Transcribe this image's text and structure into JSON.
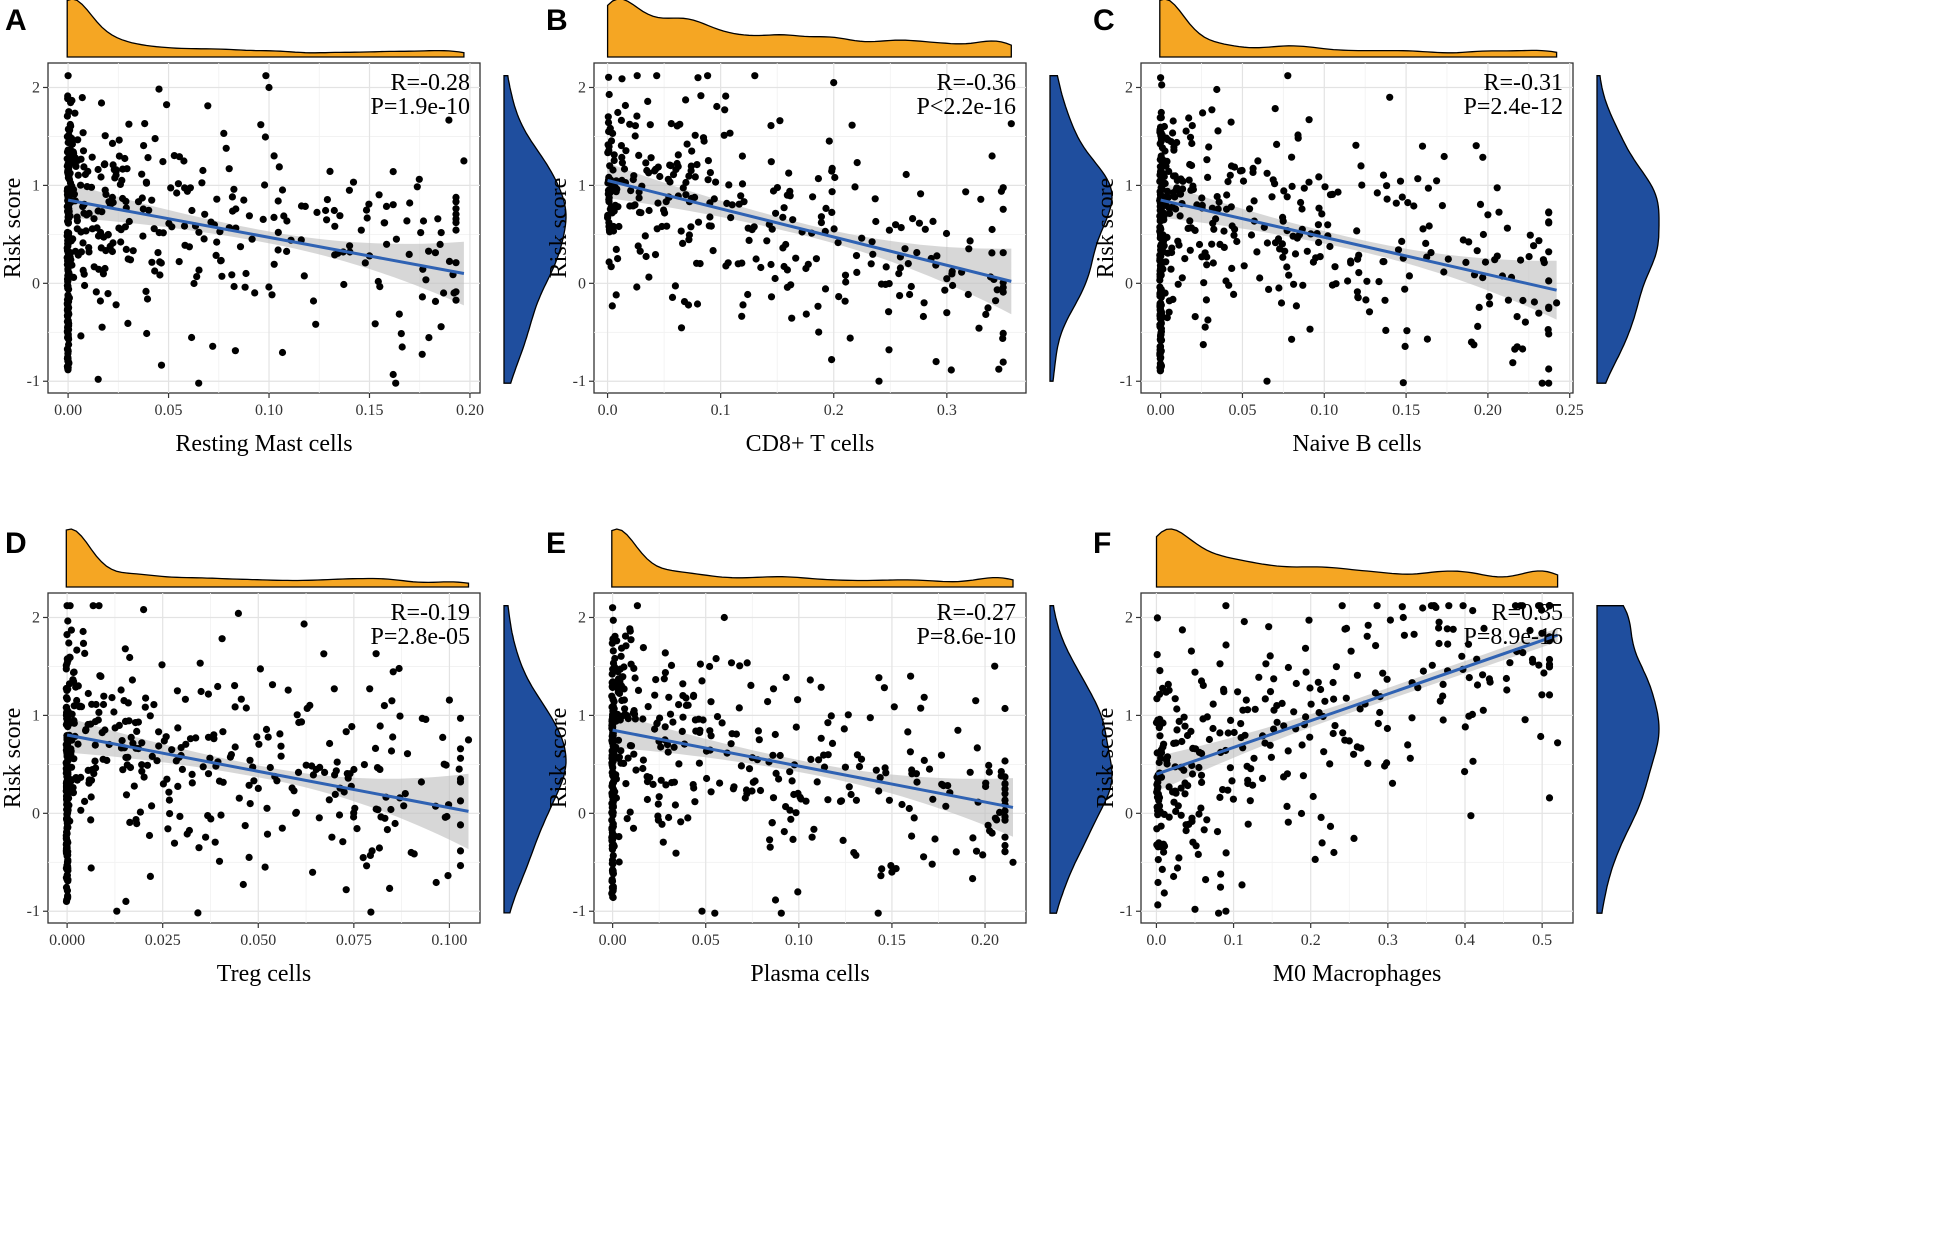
{
  "figure": {
    "background": "#ffffff",
    "top_density_color": "#f5a623",
    "right_density_color": "#1f4e9e",
    "fit_line_color": "#2f62b3",
    "band_color": "#bdbdbd"
  },
  "chart_data": [
    {
      "panel": "A",
      "type": "scatter",
      "xlabel": "Resting Mast cells",
      "ylabel": "Risk score",
      "xlim": [
        -0.01,
        0.205
      ],
      "ylim": [
        -1.12,
        2.25
      ],
      "xticks": [
        0.0,
        0.05,
        0.1,
        0.15,
        0.2
      ],
      "xtick_labels": [
        "0.00",
        "0.05",
        "0.10",
        "0.15",
        "0.20"
      ],
      "yticks": [
        -1,
        0,
        1,
        2
      ],
      "ytick_labels": [
        "-1",
        "0",
        "1",
        "2"
      ],
      "stats": {
        "r": "R=-0.28",
        "p": "P=1.9e-10"
      },
      "fit": {
        "x0": 0.0,
        "y0": 0.85,
        "x1": 0.197,
        "y1": 0.1
      },
      "band": {
        "lower_end": -0.15,
        "upper_end": 0.38
      },
      "zero_cluster": 150,
      "seed": 101,
      "highlight_points": [
        [
          0.197,
          1.25
        ],
        [
          0.17,
          0.82
        ],
        [
          0.15,
          0.28
        ],
        [
          0.1,
          2.0
        ],
        [
          0.0,
          2.12
        ],
        [
          0.065,
          -1.02
        ],
        [
          0.015,
          -0.98
        ],
        [
          0.14,
          0.95
        ]
      ]
    },
    {
      "panel": "B",
      "type": "scatter",
      "xlabel": "CD8+ T cells",
      "ylabel": "Risk score",
      "xlim": [
        -0.012,
        0.37
      ],
      "ylim": [
        -1.12,
        2.25
      ],
      "xticks": [
        0.0,
        0.1,
        0.2,
        0.3
      ],
      "xtick_labels": [
        "0.0",
        "0.1",
        "0.2",
        "0.3"
      ],
      "yticks": [
        -1,
        0,
        1,
        2
      ],
      "ytick_labels": [
        "-1",
        "0",
        "1",
        "2"
      ],
      "stats": {
        "r": "R=-0.36",
        "p": "P<2.2e-16"
      },
      "fit": {
        "x0": 0.0,
        "y0": 1.05,
        "x1": 0.357,
        "y1": 0.02
      },
      "band": {
        "lower_end": -0.25,
        "upper_end": 0.3
      },
      "zero_cluster": 0,
      "seed": 202,
      "highlight_points": [
        [
          0.357,
          1.63
        ],
        [
          0.34,
          1.3
        ],
        [
          0.2,
          2.05
        ],
        [
          0.08,
          2.1
        ],
        [
          0.24,
          -1.0
        ],
        [
          0.3,
          -0.3
        ],
        [
          0.34,
          0.55
        ]
      ]
    },
    {
      "panel": "C",
      "type": "scatter",
      "xlabel": "Naive B cells",
      "ylabel": "Risk score",
      "xlim": [
        -0.012,
        0.252
      ],
      "ylim": [
        -1.12,
        2.25
      ],
      "xticks": [
        0.0,
        0.05,
        0.1,
        0.15,
        0.2,
        0.25
      ],
      "xtick_labels": [
        "0.00",
        "0.05",
        "0.10",
        "0.15",
        "0.20",
        "0.25"
      ],
      "yticks": [
        -1,
        0,
        1,
        2
      ],
      "ytick_labels": [
        "-1",
        "0",
        "1",
        "2"
      ],
      "stats": {
        "r": "R=-0.31",
        "p": "P=2.4e-12"
      },
      "fit": {
        "x0": 0.0,
        "y0": 0.85,
        "x1": 0.242,
        "y1": -0.07
      },
      "band": {
        "lower_end": -0.3,
        "upper_end": 0.18
      },
      "zero_cluster": 150,
      "seed": 303,
      "highlight_points": [
        [
          0.242,
          -0.2
        ],
        [
          0.2,
          0.7
        ],
        [
          0.19,
          -0.6
        ],
        [
          0.14,
          1.9
        ],
        [
          0.16,
          1.4
        ],
        [
          0.065,
          -1.0
        ],
        [
          0.0,
          2.1
        ]
      ]
    },
    {
      "panel": "D",
      "type": "scatter",
      "xlabel": "Treg cells",
      "ylabel": "Risk score",
      "xlim": [
        -0.005,
        0.108
      ],
      "ylim": [
        -1.12,
        2.25
      ],
      "xticks": [
        0.0,
        0.025,
        0.05,
        0.075,
        0.1
      ],
      "xtick_labels": [
        "0.000",
        "0.025",
        "0.050",
        "0.075",
        "0.100"
      ],
      "yticks": [
        -1,
        0,
        1,
        2
      ],
      "ytick_labels": [
        "-1",
        "0",
        "1",
        "2"
      ],
      "stats": {
        "r": "R=-0.19",
        "p": "P=2.8e-05"
      },
      "fit": {
        "x0": 0.0,
        "y0": 0.8,
        "x1": 0.105,
        "y1": 0.02
      },
      "band": {
        "lower_end": -0.3,
        "upper_end": 0.35
      },
      "zero_cluster": 160,
      "seed": 404,
      "highlight_points": [
        [
          0.105,
          0.75
        ],
        [
          0.09,
          -0.4
        ],
        [
          0.083,
          1.1
        ],
        [
          0.073,
          -0.78
        ],
        [
          0.02,
          2.08
        ],
        [
          0.013,
          -1.0
        ],
        [
          0.0,
          2.12
        ]
      ]
    },
    {
      "panel": "E",
      "type": "scatter",
      "xlabel": "Plasma cells",
      "ylabel": "Risk score",
      "xlim": [
        -0.01,
        0.222
      ],
      "ylim": [
        -1.12,
        2.25
      ],
      "xticks": [
        0.0,
        0.05,
        0.1,
        0.15,
        0.2
      ],
      "xtick_labels": [
        "0.00",
        "0.05",
        "0.10",
        "0.15",
        "0.20"
      ],
      "yticks": [
        -1,
        0,
        1,
        2
      ],
      "ytick_labels": [
        "-1",
        "0",
        "1",
        "2"
      ],
      "stats": {
        "r": "R=-0.27",
        "p": "P=8.6e-10"
      },
      "fit": {
        "x0": 0.0,
        "y0": 0.85,
        "x1": 0.215,
        "y1": 0.06
      },
      "band": {
        "lower_end": -0.18,
        "upper_end": 0.3
      },
      "zero_cluster": 120,
      "seed": 505,
      "highlight_points": [
        [
          0.215,
          -0.5
        ],
        [
          0.195,
          1.15
        ],
        [
          0.16,
          1.4
        ],
        [
          0.15,
          -0.6
        ],
        [
          0.06,
          2.0
        ],
        [
          0.0,
          2.1
        ],
        [
          0.048,
          -1.0
        ]
      ]
    },
    {
      "panel": "F",
      "type": "scatter",
      "xlabel": "M0 Macrophages",
      "ylabel": "Risk score",
      "xlim": [
        -0.02,
        0.54
      ],
      "ylim": [
        -1.12,
        2.25
      ],
      "xticks": [
        0.0,
        0.1,
        0.2,
        0.3,
        0.4,
        0.5
      ],
      "xtick_labels": [
        "0.0",
        "0.1",
        "0.2",
        "0.3",
        "0.4",
        "0.5"
      ],
      "yticks": [
        -1,
        0,
        1,
        2
      ],
      "ytick_labels": [
        "-1",
        "0",
        "1",
        "2"
      ],
      "stats": {
        "r": "R=0.35",
        "p": "P=8.9e-16"
      },
      "fit": {
        "x0": 0.0,
        "y0": 0.4,
        "x1": 0.52,
        "y1": 1.82
      },
      "band": {
        "lower_end": 0.18,
        "upper_end": 0.2
      },
      "zero_cluster": 0,
      "seed": 606,
      "highlight_points": [
        [
          0.52,
          0.72
        ],
        [
          0.41,
          2.07
        ],
        [
          0.32,
          2.0
        ],
        [
          0.09,
          2.12
        ],
        [
          0.05,
          -0.98
        ],
        [
          0.23,
          -0.4
        ],
        [
          0.09,
          -1.0
        ]
      ]
    }
  ]
}
